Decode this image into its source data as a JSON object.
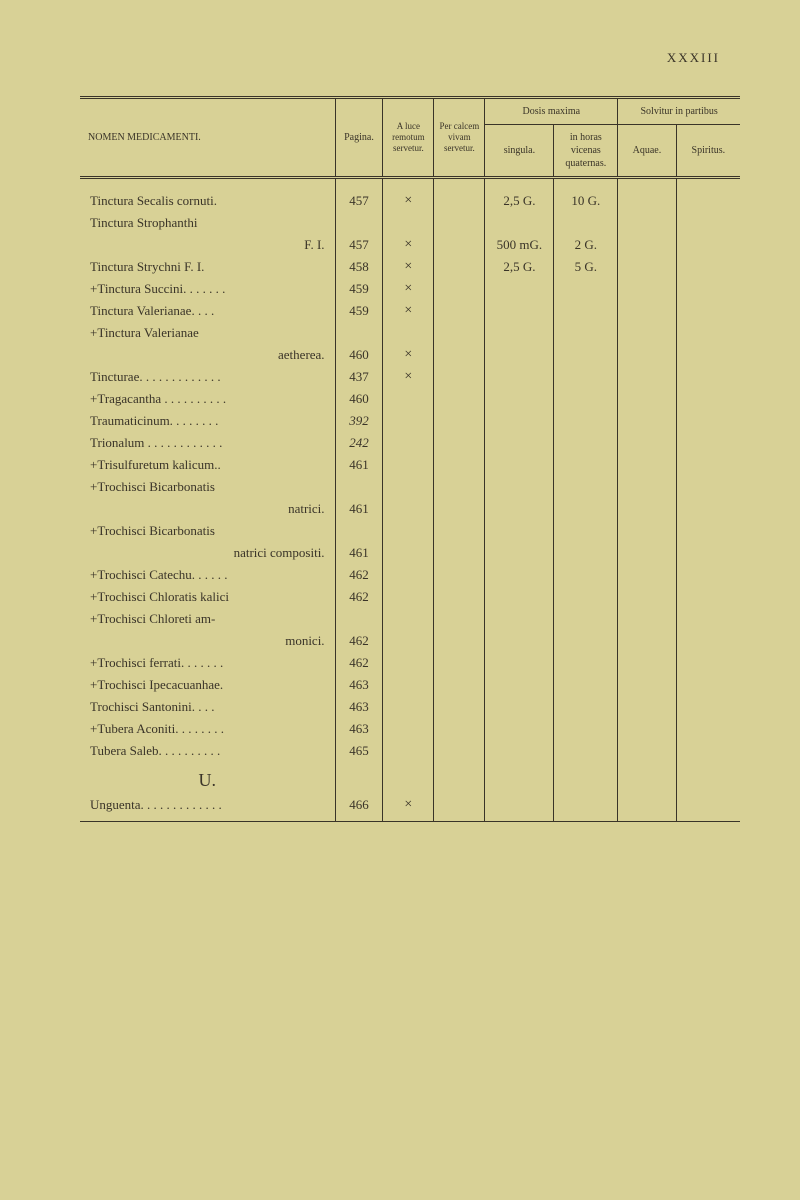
{
  "pageNumber": "XXXIII",
  "headers": {
    "nomen": "NOMEN MEDICAMENTI.",
    "pagina": "Pagina.",
    "luce": "A luce remotum servetur.",
    "calcem": "Per calcem vivam servetur.",
    "dosis": "Dosis maxima",
    "singula": "singula.",
    "horas": "in horas vicenas quaternas.",
    "solvitur": "Solvitur in partibus",
    "aquae": "Aquae.",
    "spiritus": "Spiritus."
  },
  "rows": [
    {
      "nomen": "Tinctura Secalis cornuti.",
      "pagina": "457",
      "luce": "×",
      "calcem": "",
      "singula": "2,5 G.",
      "horas": "10 G.",
      "aquae": "",
      "spiritus": ""
    },
    {
      "nomen": "Tinctura Strophanthi",
      "pagina": "",
      "luce": "",
      "calcem": "",
      "singula": "",
      "horas": "",
      "aquae": "",
      "spiritus": ""
    },
    {
      "nomen": "F. I.",
      "indent": true,
      "pagina": "457",
      "luce": "×",
      "calcem": "",
      "singula": "500 mG.",
      "horas": "2 G.",
      "aquae": "",
      "spiritus": ""
    },
    {
      "nomen": "Tinctura Strychni F. I.",
      "pagina": "458",
      "luce": "×",
      "calcem": "",
      "singula": "2,5 G.",
      "horas": "5 G.",
      "aquae": "",
      "spiritus": ""
    },
    {
      "nomen": "+Tinctura Succini. . . . . . .",
      "pagina": "459",
      "luce": "×",
      "calcem": "",
      "singula": "",
      "horas": "",
      "aquae": "",
      "spiritus": ""
    },
    {
      "nomen": "Tinctura Valerianae. . . .",
      "pagina": "459",
      "luce": "×",
      "calcem": "",
      "singula": "",
      "horas": "",
      "aquae": "",
      "spiritus": ""
    },
    {
      "nomen": "+Tinctura Valerianae",
      "pagina": "",
      "luce": "",
      "calcem": "",
      "singula": "",
      "horas": "",
      "aquae": "",
      "spiritus": ""
    },
    {
      "nomen": "aetherea.",
      "indent": true,
      "pagina": "460",
      "luce": "×",
      "calcem": "",
      "singula": "",
      "horas": "",
      "aquae": "",
      "spiritus": ""
    },
    {
      "nomen": "Tincturae. . . . . . . . . . . . .",
      "pagina": "437",
      "luce": "×",
      "calcem": "",
      "singula": "",
      "horas": "",
      "aquae": "",
      "spiritus": ""
    },
    {
      "nomen": "+Tragacantha . . . . . . . . . .",
      "pagina": "460",
      "luce": "",
      "calcem": "",
      "singula": "",
      "horas": "",
      "aquae": "",
      "spiritus": ""
    },
    {
      "nomen": "Traumaticinum. . . . . . . .",
      "pagina": "392",
      "italic": true,
      "luce": "",
      "calcem": "",
      "singula": "",
      "horas": "",
      "aquae": "",
      "spiritus": ""
    },
    {
      "nomen": "Trionalum . . . . . . . . . . . .",
      "pagina": "242",
      "italic": true,
      "luce": "",
      "calcem": "",
      "singula": "",
      "horas": "",
      "aquae": "",
      "spiritus": ""
    },
    {
      "nomen": "+Trisulfuretum kalicum..",
      "pagina": "461",
      "luce": "",
      "calcem": "",
      "singula": "",
      "horas": "",
      "aquae": "",
      "spiritus": ""
    },
    {
      "nomen": "+Trochisci Bicarbonatis",
      "pagina": "",
      "luce": "",
      "calcem": "",
      "singula": "",
      "horas": "",
      "aquae": "",
      "spiritus": ""
    },
    {
      "nomen": "natrici.",
      "indent": true,
      "pagina": "461",
      "luce": "",
      "calcem": "",
      "singula": "",
      "horas": "",
      "aquae": "",
      "spiritus": ""
    },
    {
      "nomen": "+Trochisci Bicarbonatis",
      "pagina": "",
      "luce": "",
      "calcem": "",
      "singula": "",
      "horas": "",
      "aquae": "",
      "spiritus": ""
    },
    {
      "nomen": "natrici compositi.",
      "indent": true,
      "pagina": "461",
      "luce": "",
      "calcem": "",
      "singula": "",
      "horas": "",
      "aquae": "",
      "spiritus": ""
    },
    {
      "nomen": "+Trochisci Catechu. . . . . .",
      "pagina": "462",
      "luce": "",
      "calcem": "",
      "singula": "",
      "horas": "",
      "aquae": "",
      "spiritus": ""
    },
    {
      "nomen": "+Trochisci Chloratis kalici",
      "pagina": "462",
      "luce": "",
      "calcem": "",
      "singula": "",
      "horas": "",
      "aquae": "",
      "spiritus": ""
    },
    {
      "nomen": "+Trochisci Chloreti am-",
      "pagina": "",
      "luce": "",
      "calcem": "",
      "singula": "",
      "horas": "",
      "aquae": "",
      "spiritus": ""
    },
    {
      "nomen": "monici.",
      "indent": true,
      "pagina": "462",
      "luce": "",
      "calcem": "",
      "singula": "",
      "horas": "",
      "aquae": "",
      "spiritus": ""
    },
    {
      "nomen": "+Trochisci ferrati. . . . . . .",
      "pagina": "462",
      "luce": "",
      "calcem": "",
      "singula": "",
      "horas": "",
      "aquae": "",
      "spiritus": ""
    },
    {
      "nomen": "+Trochisci Ipecacuanhae.",
      "pagina": "463",
      "luce": "",
      "calcem": "",
      "singula": "",
      "horas": "",
      "aquae": "",
      "spiritus": ""
    },
    {
      "nomen": "Trochisci Santonini. . . .",
      "pagina": "463",
      "luce": "",
      "calcem": "",
      "singula": "",
      "horas": "",
      "aquae": "",
      "spiritus": ""
    },
    {
      "nomen": "+Tubera Aconiti. . . . . . . .",
      "pagina": "463",
      "luce": "",
      "calcem": "",
      "singula": "",
      "horas": "",
      "aquae": "",
      "spiritus": ""
    },
    {
      "nomen": "Tubera Saleb. . . . . . . . . .",
      "pagina": "465",
      "luce": "",
      "calcem": "",
      "singula": "",
      "horas": "",
      "aquae": "",
      "spiritus": ""
    }
  ],
  "sectionLetter": "U.",
  "lastRow": {
    "nomen": "Unguenta. . . . . . . . . . . . .",
    "pagina": "466",
    "luce": "×",
    "calcem": "",
    "singula": "",
    "horas": "",
    "aquae": "",
    "spiritus": ""
  },
  "colors": {
    "background": "#d8d196",
    "text": "#3a3428",
    "border": "#3a3428"
  }
}
